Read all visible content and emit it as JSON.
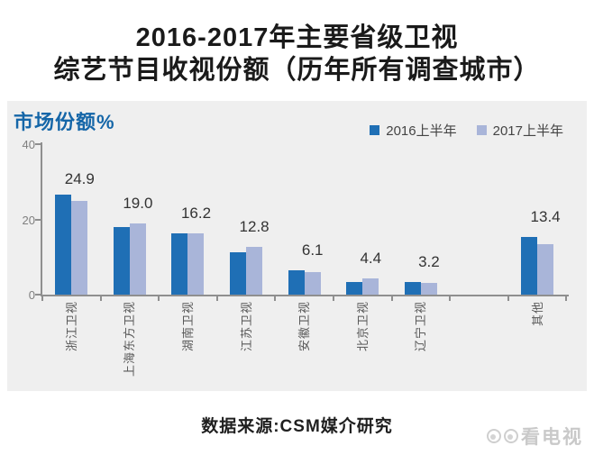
{
  "title": {
    "line1": "2016-2017年主要省级卫视",
    "line2": "综艺节目收视份额（历年所有调查城市）"
  },
  "panel": {
    "header": "市场份额%"
  },
  "chart_data": {
    "type": "bar",
    "title": "市场份额%",
    "categories": [
      "浙江卫视",
      "上海东方卫视",
      "湖南卫视",
      "江苏卫视",
      "安徽卫视",
      "北京卫视",
      "辽宁卫视",
      "",
      "其他"
    ],
    "series": [
      {
        "name": "2016上半年",
        "color": "#1F6FB5",
        "values": [
          26.6,
          17.9,
          16.3,
          11.2,
          6.4,
          3.3,
          3.4,
          null,
          15.3
        ]
      },
      {
        "name": "2017上半年",
        "color": "#A9B5D9",
        "values": [
          24.9,
          19.0,
          16.2,
          12.8,
          6.1,
          4.4,
          3.2,
          null,
          13.4
        ]
      }
    ],
    "data_labels": [
      "24.9",
      "19.0",
      "16.2",
      "12.8",
      "6.1",
      "4.4",
      "3.2",
      null,
      "13.4"
    ],
    "data_labels_series": "2017上半年",
    "ylim": [
      0,
      40
    ],
    "yticks": [
      0,
      20,
      40
    ],
    "grid": false,
    "legend_position": "top-right"
  },
  "source": {
    "text": "数据来源:CSM媒介研究"
  },
  "watermark": {
    "text": "看电视"
  },
  "colors": {
    "series_2016": "#1F6FB5",
    "series_2017": "#A9B5D9",
    "panel_bg": "#EFEFEF",
    "header_blue": "#1566A8",
    "axis_gray": "#8F8F8F"
  }
}
